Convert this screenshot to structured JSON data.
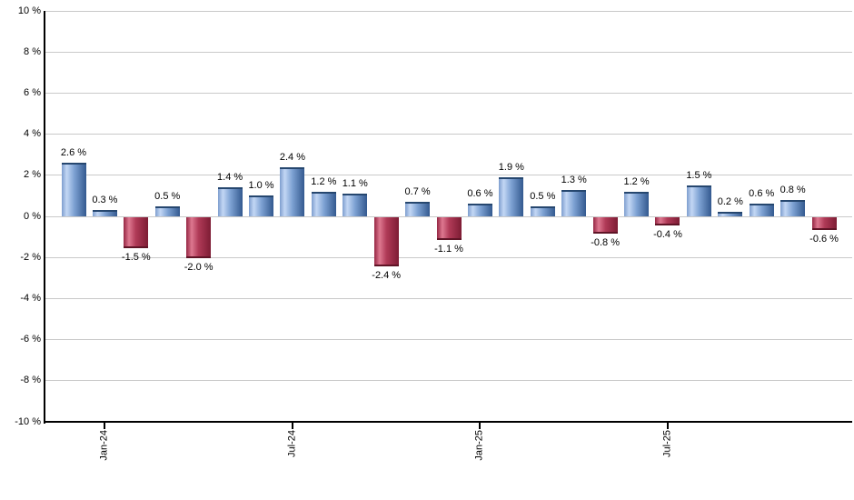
{
  "chart_data": {
    "type": "bar",
    "title": "",
    "unit": "%",
    "grid": true,
    "legend": "none",
    "ylim": [
      -10,
      10
    ],
    "y_tick_step": 2,
    "y_tick_labels": [
      "10 %",
      "8 %",
      "6 %",
      "4 %",
      "2 %",
      "0 %",
      "-2 %",
      "-4 %",
      "-6 %",
      "-8 %",
      "-10 %"
    ],
    "x_tick_labels": [
      {
        "bar_index": 1,
        "label": "Jan-24"
      },
      {
        "bar_index": 7,
        "label": "Jul-24"
      },
      {
        "bar_index": 13,
        "label": "Jan-25"
      },
      {
        "bar_index": 19,
        "label": "Jul-25"
      }
    ],
    "bars": [
      {
        "value": 2.6,
        "label": "2.6 %"
      },
      {
        "value": 0.3,
        "label": "0.3 %"
      },
      {
        "value": -1.5,
        "label": "-1.5 %"
      },
      {
        "value": 0.5,
        "label": "0.5 %"
      },
      {
        "value": -2.0,
        "label": "-2.0 %"
      },
      {
        "value": 1.4,
        "label": "1.4 %"
      },
      {
        "value": 1.0,
        "label": "1.0 %"
      },
      {
        "value": 2.4,
        "label": "2.4 %"
      },
      {
        "value": 1.2,
        "label": "1.2 %"
      },
      {
        "value": 1.1,
        "label": "1.1 %"
      },
      {
        "value": -2.4,
        "label": "-2.4 %"
      },
      {
        "value": 0.7,
        "label": "0.7 %"
      },
      {
        "value": -1.1,
        "label": "-1.1 %"
      },
      {
        "value": 0.6,
        "label": "0.6 %"
      },
      {
        "value": 1.9,
        "label": "1.9 %"
      },
      {
        "value": 0.5,
        "label": "0.5 %"
      },
      {
        "value": 1.3,
        "label": "1.3 %"
      },
      {
        "value": -0.8,
        "label": "-0.8 %"
      },
      {
        "value": 1.2,
        "label": "1.2 %"
      },
      {
        "value": -0.4,
        "label": "-0.4 %"
      },
      {
        "value": 1.5,
        "label": "1.5 %"
      },
      {
        "value": 0.2,
        "label": "0.2 %"
      },
      {
        "value": 0.6,
        "label": "0.6 %"
      },
      {
        "value": 0.8,
        "label": "0.8 %"
      },
      {
        "value": -0.6,
        "label": "-0.6 %"
      }
    ],
    "colors": {
      "positive_bar": "#7fa3d4",
      "positive_cap": "#26476f",
      "negative_bar": "#b03a57",
      "negative_cap": "#5f1426",
      "gridline": "#c9c9c9",
      "axis": "#000000",
      "label_text": "#000000"
    }
  }
}
